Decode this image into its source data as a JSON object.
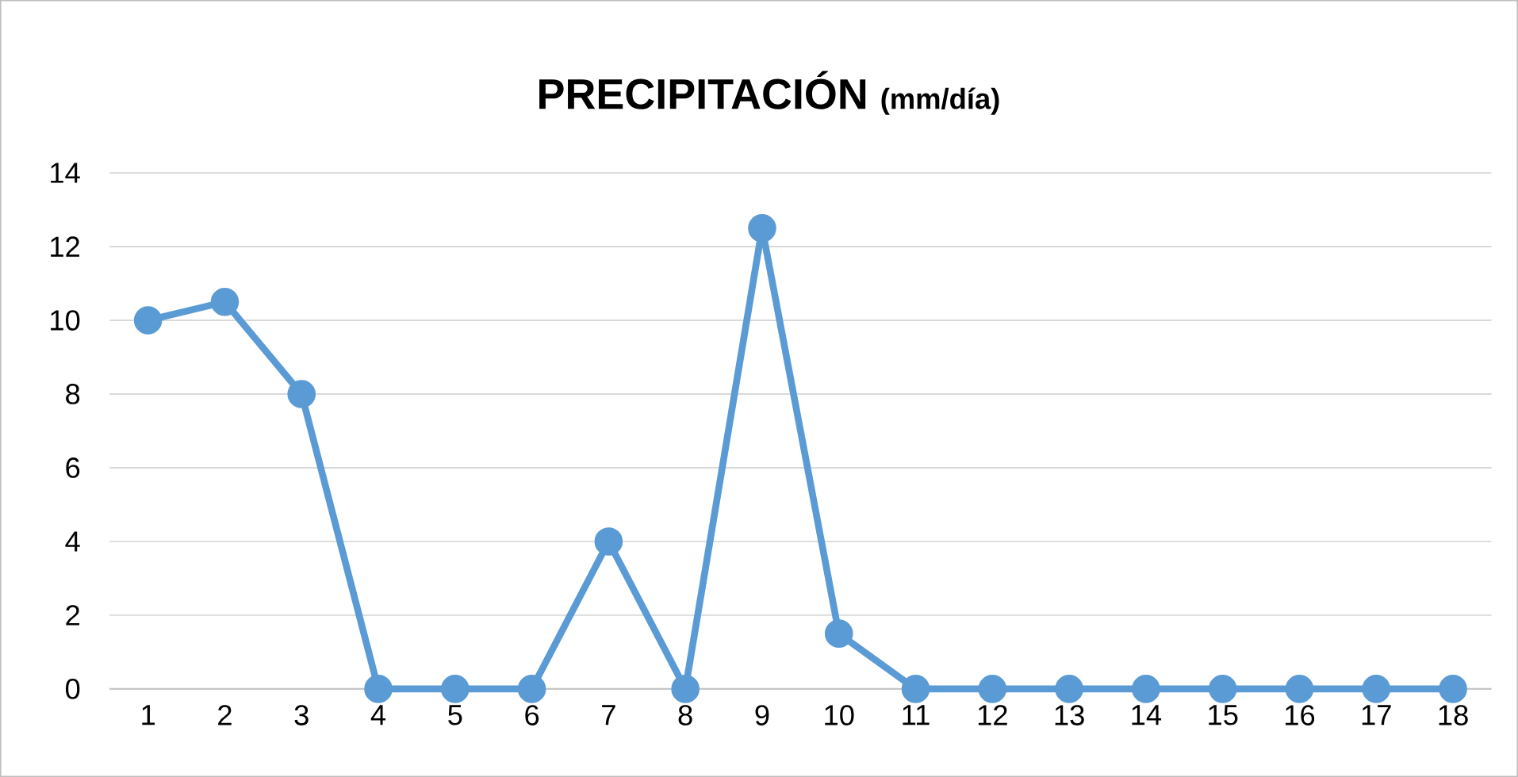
{
  "chart_data": {
    "type": "line",
    "title": "PRECIPITACIÓN",
    "subtitle": "(mm/día)",
    "categories": [
      "1",
      "2",
      "3",
      "4",
      "5",
      "6",
      "7",
      "8",
      "9",
      "10",
      "11",
      "12",
      "13",
      "14",
      "15",
      "16",
      "17",
      "18"
    ],
    "series": [
      {
        "color": "#5b9bd5",
        "values": [
          10,
          10.5,
          8,
          0,
          0,
          0,
          4,
          0,
          12.5,
          1.5,
          0,
          0,
          0,
          0,
          0,
          0,
          0,
          0
        ]
      }
    ],
    "ylim": [
      0,
      14
    ],
    "yticks": [
      0,
      2,
      4,
      6,
      8,
      10,
      12,
      14
    ],
    "grid": "y",
    "marker": "circle",
    "line_style": "solid"
  }
}
